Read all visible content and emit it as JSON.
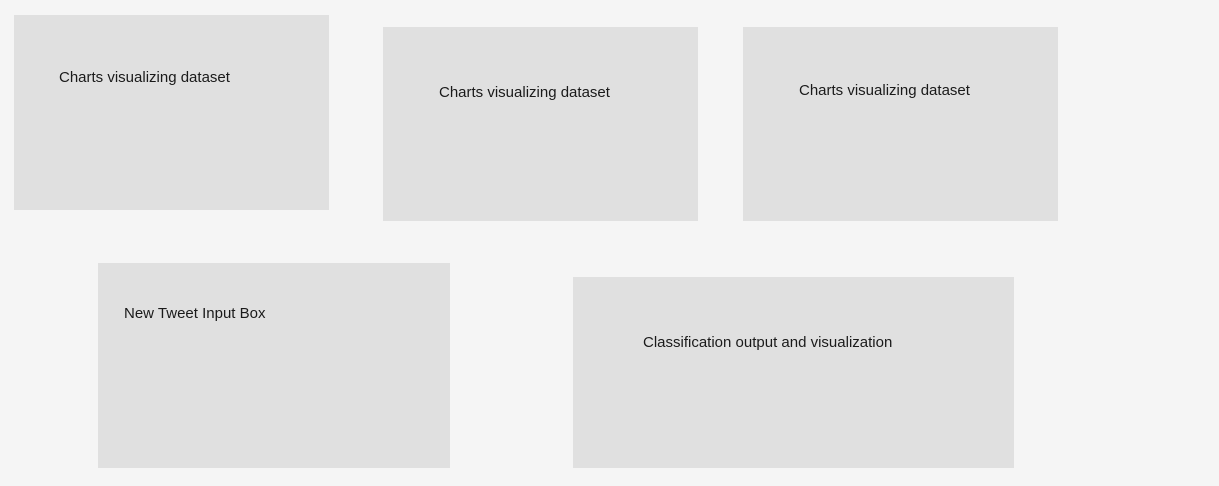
{
  "panels": {
    "chart_1": {
      "label": "Charts visualizing dataset"
    },
    "chart_2": {
      "label": "Charts visualizing dataset"
    },
    "chart_3": {
      "label": "Charts visualizing dataset"
    },
    "tweet_input": {
      "label": "New Tweet Input Box"
    },
    "classification_output": {
      "label": "Classification output and visualization"
    }
  }
}
